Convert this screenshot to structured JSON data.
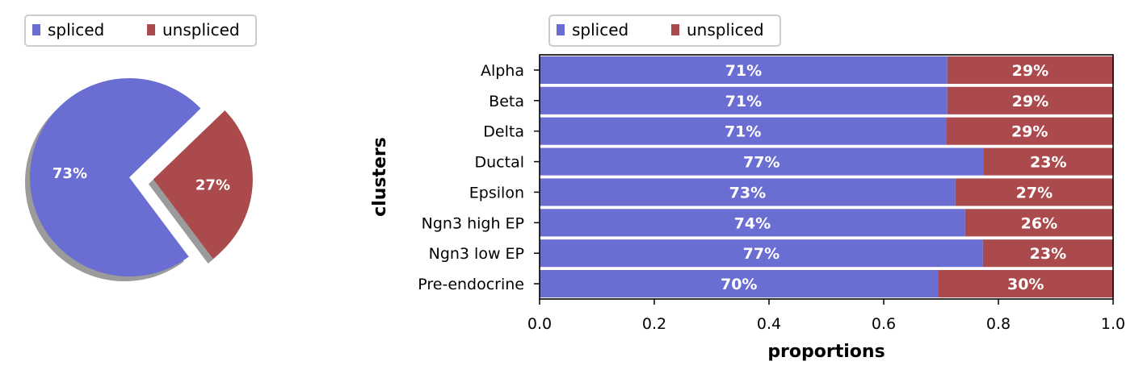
{
  "chart_data": [
    {
      "type": "pie",
      "labels": [
        "spliced",
        "unspliced"
      ],
      "values": [
        73,
        27
      ],
      "value_labels": [
        "73%",
        "27%"
      ],
      "colors": [
        "#6a6dd1",
        "#ab4a4d"
      ],
      "exploded": [
        false,
        true
      ],
      "shadow": true,
      "legend": {
        "entries": [
          "spliced",
          "unspliced"
        ],
        "placement": "top-left"
      }
    },
    {
      "type": "bar",
      "orientation": "horizontal",
      "stacked": true,
      "categories": [
        "Alpha",
        "Beta",
        "Delta",
        "Ductal",
        "Epsilon",
        "Ngn3 high EP",
        "Ngn3 low EP",
        "Pre-endocrine"
      ],
      "series": [
        {
          "name": "spliced",
          "color": "#6a6dd1",
          "values": [
            0.711,
            0.711,
            0.709,
            0.774,
            0.725,
            0.742,
            0.773,
            0.695
          ],
          "labels": [
            "71%",
            "71%",
            "71%",
            "77%",
            "73%",
            "74%",
            "77%",
            "70%"
          ]
        },
        {
          "name": "unspliced",
          "color": "#ab4a4d",
          "values": [
            0.289,
            0.289,
            0.291,
            0.226,
            0.275,
            0.258,
            0.227,
            0.305
          ],
          "labels": [
            "29%",
            "29%",
            "29%",
            "23%",
            "27%",
            "26%",
            "23%",
            "30%"
          ]
        }
      ],
      "xlabel": "proportions",
      "ylabel": "clusters",
      "xlim": [
        0,
        1
      ],
      "xticks": [
        "0.0",
        "0.2",
        "0.4",
        "0.6",
        "0.8",
        "1.0"
      ],
      "legend": {
        "entries": [
          "spliced",
          "unspliced"
        ],
        "placement": "top-left"
      }
    }
  ]
}
